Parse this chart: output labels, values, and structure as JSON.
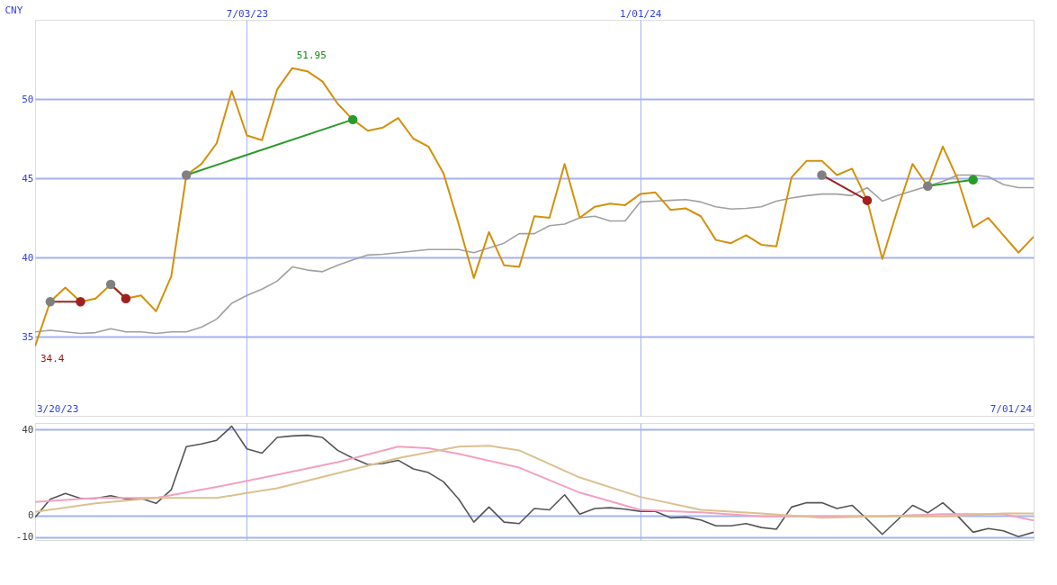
{
  "chart_data": [
    {
      "type": "line",
      "ylabel": "CNY",
      "x": [
        "2023-03-27",
        "2023-04-03",
        "2023-04-10",
        "2023-04-17",
        "2023-04-24",
        "2023-05-01",
        "2023-05-08",
        "2023-05-15",
        "2023-05-22",
        "2023-05-29",
        "2023-06-05",
        "2023-06-12",
        "2023-06-19",
        "2023-06-26",
        "2023-07-03",
        "2023-07-10",
        "2023-07-17",
        "2023-07-24",
        "2023-07-31",
        "2023-08-07",
        "2023-08-14",
        "2023-08-21",
        "2023-08-28",
        "2023-09-04",
        "2023-09-11",
        "2023-09-18",
        "2023-09-25",
        "2023-10-02",
        "2023-10-09",
        "2023-10-16",
        "2023-10-23",
        "2023-10-30",
        "2023-11-06",
        "2023-11-13",
        "2023-11-20",
        "2023-11-27",
        "2023-12-04",
        "2023-12-11",
        "2023-12-18",
        "2023-12-25",
        "2024-01-01",
        "2024-01-08",
        "2024-01-15",
        "2024-01-22",
        "2024-01-29",
        "2024-02-05",
        "2024-02-12",
        "2024-02-19",
        "2024-02-26",
        "2024-03-04",
        "2024-03-11",
        "2024-03-18",
        "2024-03-25",
        "2024-04-01",
        "2024-04-08",
        "2024-04-15",
        "2024-04-22",
        "2024-04-29",
        "2024-05-06",
        "2024-05-13",
        "2024-05-20",
        "2024-05-27",
        "2024-06-03",
        "2024-06-10",
        "2024-06-17",
        "2024-06-24",
        "2024-07-01"
      ],
      "series": [
        {
          "color": "#a0a0a0",
          "values": [
            35.3,
            35.4,
            35.3,
            35.2,
            35.25,
            35.5,
            35.3,
            35.3,
            35.2,
            35.3,
            35.3,
            35.6,
            36.1,
            37.1,
            37.6,
            38.0,
            38.5,
            39.4,
            39.2,
            39.1,
            39.5,
            39.85,
            40.15,
            40.2,
            40.3,
            40.4,
            40.5,
            40.5,
            40.5,
            40.3,
            40.6,
            40.9,
            41.5,
            41.5,
            42.0,
            42.1,
            42.5,
            42.6,
            42.3,
            42.3,
            43.5,
            43.55,
            43.6,
            43.65,
            43.5,
            43.2,
            43.05,
            43.1,
            43.2,
            43.55,
            43.75,
            43.9,
            44.0,
            44.0,
            43.9,
            44.4,
            43.55,
            43.9,
            44.2,
            44.5,
            44.8,
            45.2,
            45.2,
            45.1,
            44.6,
            44.4,
            44.4
          ]
        },
        {
          "color": "#d4900a",
          "values": [
            34.4,
            37.2,
            38.1,
            37.2,
            37.4,
            38.3,
            37.4,
            37.6,
            36.6,
            38.8,
            45.2,
            45.9,
            47.2,
            50.5,
            47.7,
            47.4,
            50.6,
            51.95,
            51.75,
            51.1,
            49.7,
            48.7,
            48.0,
            48.2,
            48.8,
            47.5,
            47.0,
            45.3,
            42.1,
            38.7,
            41.6,
            39.5,
            39.4,
            42.6,
            42.5,
            45.9,
            42.5,
            43.2,
            43.4,
            43.3,
            44.0,
            44.1,
            43.0,
            43.1,
            42.6,
            41.1,
            40.9,
            41.4,
            40.8,
            40.7,
            45.05,
            46.1,
            46.1,
            45.2,
            45.6,
            43.6,
            39.9,
            43.0,
            45.9,
            44.5,
            47.0,
            44.9,
            41.9,
            42.5,
            41.4,
            40.3,
            41.3
          ]
        },
        {
          "color": "#2a9a2a",
          "marker": "circle",
          "x": [
            "2023-06-05",
            "2023-08-21"
          ],
          "values": [
            45.2,
            48.7
          ],
          "colors": [
            "#808080",
            "#2a9a2a"
          ]
        },
        {
          "color": "#a02020",
          "marker": "circle",
          "x": [
            "2023-04-03",
            "2023-04-17"
          ],
          "values": [
            37.2,
            37.2
          ],
          "colors": [
            "#808080",
            "#a02020"
          ]
        },
        {
          "color": "#a02020",
          "marker": "circle",
          "x": [
            "2023-05-01",
            "2023-05-08"
          ],
          "values": [
            38.3,
            37.4
          ],
          "colors": [
            "#808080",
            "#a02020"
          ]
        },
        {
          "color": "#a02020",
          "marker": "circle",
          "x": [
            "2024-03-25",
            "2024-04-15"
          ],
          "values": [
            45.2,
            43.6
          ],
          "colors": [
            "#808080",
            "#a02020"
          ]
        },
        {
          "color": "#2a9a2a",
          "marker": "circle",
          "x": [
            "2024-05-13",
            "2024-06-03"
          ],
          "values": [
            44.5,
            44.9
          ],
          "colors": [
            "#808080",
            "#2a9a2a"
          ]
        }
      ],
      "xlim": [
        "2023-03-27",
        "2024-07-01"
      ],
      "xticks": [
        {
          "value": "2023-07-03",
          "label": "7/03/23"
        },
        {
          "value": "2024-01-01",
          "label": "1/01/24"
        }
      ],
      "ylim": [
        30,
        55
      ],
      "yticks": [
        35,
        40,
        45,
        50
      ],
      "grid": true,
      "annotations": [
        {
          "text": "51.95",
          "x": "2023-07-31",
          "y": 51.95
        },
        {
          "text": "34.4",
          "x": "2023-03-27",
          "y": 34.4
        },
        "3/20/23",
        "7/01/24"
      ]
    },
    {
      "type": "line",
      "tick_labels": "y",
      "x": [
        "2023-03-27",
        "2023-04-03",
        "2023-04-10",
        "2023-04-17",
        "2023-04-24",
        "2023-05-01",
        "2023-05-08",
        "2023-05-15",
        "2023-05-22",
        "2023-05-29",
        "2023-06-05",
        "2023-06-12",
        "2023-06-19",
        "2023-06-26",
        "2023-07-03",
        "2023-07-10",
        "2023-07-17",
        "2023-07-24",
        "2023-07-31",
        "2023-08-07",
        "2023-08-14",
        "2023-08-21",
        "2023-08-28",
        "2023-09-04",
        "2023-09-11",
        "2023-09-18",
        "2023-09-25",
        "2023-10-02",
        "2023-10-09",
        "2023-10-16",
        "2023-10-23",
        "2023-10-30",
        "2023-11-06",
        "2023-11-13",
        "2023-11-20",
        "2023-11-27",
        "2023-12-04",
        "2023-12-11",
        "2023-12-18",
        "2023-12-25",
        "2024-01-01",
        "2024-01-08",
        "2024-01-15",
        "2024-01-22",
        "2024-01-29",
        "2024-02-05",
        "2024-02-12",
        "2024-02-19",
        "2024-02-26",
        "2024-03-04",
        "2024-03-11",
        "2024-03-18",
        "2024-03-25",
        "2024-04-01",
        "2024-04-08",
        "2024-04-15",
        "2024-04-22",
        "2024-04-29",
        "2024-05-06",
        "2024-05-13",
        "2024-05-20",
        "2024-05-27",
        "2024-06-03",
        "2024-06-10",
        "2024-06-17",
        "2024-06-24",
        "2024-07-01"
      ],
      "series": [
        {
          "color": "#555555",
          "values": [
            -0.7,
            7.6,
            10.3,
            8,
            8,
            9.3,
            7.7,
            8,
            5.7,
            12,
            32,
            33.3,
            35,
            41.5,
            31,
            29,
            36.3,
            37,
            37.3,
            36.3,
            30.3,
            26.7,
            23.7,
            24.2,
            25.7,
            21.7,
            20,
            15.7,
            7.7,
            -3,
            4,
            -3,
            -3.7,
            3.3,
            2.7,
            9.7,
            0.7,
            3.3,
            3.7,
            3,
            2,
            2,
            -1,
            -0.7,
            -2,
            -4.7,
            -4.7,
            -3.7,
            -5.5,
            -6.3,
            4,
            6,
            6,
            3.3,
            4.8,
            -1.7,
            -8.7,
            -2,
            4.8,
            1.3,
            6,
            -0.3,
            -7.7,
            -6,
            -7,
            -9.7,
            -7.7
          ]
        },
        {
          "color": "#f4a0c0",
          "x": [
            "2023-03-27",
            "2023-04-24",
            "2023-05-22",
            "2023-06-19",
            "2023-07-17",
            "2023-08-14",
            "2023-09-11",
            "2023-09-25",
            "2023-10-09",
            "2023-11-06",
            "2023-12-04",
            "2024-01-01",
            "2024-01-29",
            "2024-02-26",
            "2024-03-25",
            "2024-04-22",
            "2024-05-20",
            "2024-06-17",
            "2024-07-01"
          ],
          "values": [
            6.3,
            8.2,
            8.2,
            13.3,
            19,
            24.8,
            32,
            31.3,
            28.7,
            22.3,
            10.7,
            2.7,
            1.5,
            -0.3,
            -0.3,
            -0.3,
            0.7,
            0.7,
            -2.2
          ]
        },
        {
          "color": "#dcc090",
          "x": [
            "2023-03-27",
            "2023-04-24",
            "2023-05-22",
            "2023-06-19",
            "2023-07-03",
            "2023-07-17",
            "2023-08-14",
            "2023-09-11",
            "2023-10-09",
            "2023-10-23",
            "2023-11-06",
            "2023-12-04",
            "2024-01-01",
            "2024-01-29",
            "2024-02-26",
            "2024-03-25",
            "2024-04-22",
            "2024-05-20",
            "2024-06-17",
            "2024-07-01"
          ],
          "values": [
            1.7,
            5.7,
            8.2,
            8.2,
            10.5,
            12.7,
            19.7,
            26.7,
            32,
            32.5,
            30.3,
            17.7,
            8.7,
            2.7,
            1,
            -1,
            -0.3,
            -0.3,
            1,
            1
          ]
        }
      ],
      "xlim": [
        "2023-03-27",
        "2024-07-01"
      ],
      "xticks": [
        {
          "value": "2023-07-03",
          "label": null
        },
        {
          "value": "2024-01-01",
          "label": null
        }
      ],
      "ylim": [
        -11.3,
        43
      ],
      "yticks": [
        40,
        0,
        -10
      ],
      "grid": true
    }
  ]
}
